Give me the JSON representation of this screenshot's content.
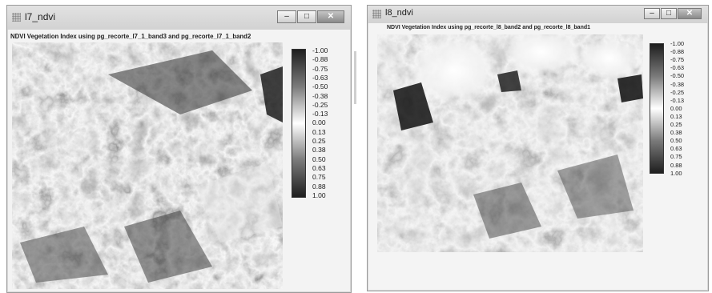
{
  "windows": [
    {
      "title": "l7_ndvi",
      "subtitle": "NDVI Vegetation Index using pg_recorte_l7_1_band3 and pg_recorte_l7_1_band2",
      "legend": [
        "-1.00",
        "-0.88",
        "-0.75",
        "-0.63",
        "-0.50",
        "-0.38",
        "-0.25",
        "-0.13",
        "0.00",
        "0.13",
        "0.25",
        "0.38",
        "0.50",
        "0.63",
        "0.75",
        "0.88",
        "1.00"
      ]
    },
    {
      "title": "l8_ndvi",
      "subtitle": "NDVI Vegetation Index using pg_recorte_l8_band2 and pg_recorte_l8_band1",
      "legend": [
        "-1.00",
        "-0.88",
        "-0.75",
        "-0.63",
        "-0.50",
        "-0.38",
        "-0.25",
        "-0.13",
        "0.00",
        "0.13",
        "0.25",
        "0.38",
        "0.50",
        "0.63",
        "0.75",
        "0.88",
        "1.00"
      ]
    }
  ],
  "controls": {
    "minimize": "–",
    "maximize": "□",
    "close": "✕"
  },
  "icons": {
    "app": "grid-app-icon",
    "minimize": "minimize-icon",
    "maximize": "maximize-icon",
    "close": "close-icon"
  }
}
